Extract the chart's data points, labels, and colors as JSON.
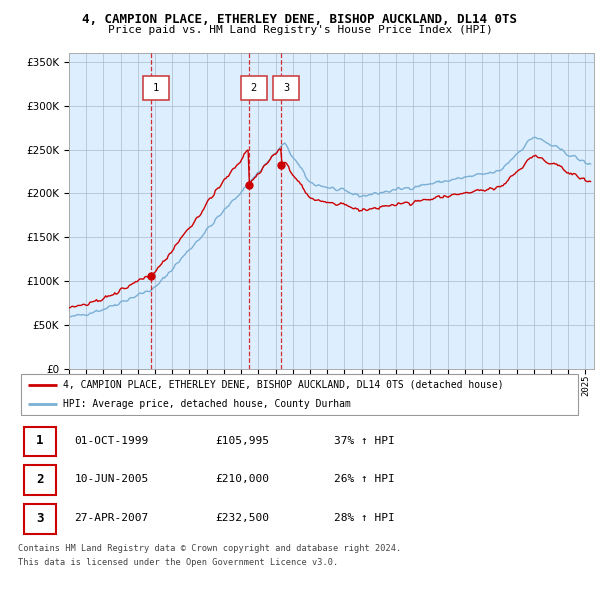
{
  "title": "4, CAMPION PLACE, ETHERLEY DENE, BISHOP AUCKLAND, DL14 0TS",
  "subtitle": "Price paid vs. HM Land Registry's House Price Index (HPI)",
  "legend_line1": "4, CAMPION PLACE, ETHERLEY DENE, BISHOP AUCKLAND, DL14 0TS (detached house)",
  "legend_line2": "HPI: Average price, detached house, County Durham",
  "footer1": "Contains HM Land Registry data © Crown copyright and database right 2024.",
  "footer2": "This data is licensed under the Open Government Licence v3.0.",
  "transactions": [
    {
      "num": 1,
      "date": "01-OCT-1999",
      "price": "£105,995",
      "hpi": "37% ↑ HPI",
      "year": 1999.75,
      "value": 105995
    },
    {
      "num": 2,
      "date": "10-JUN-2005",
      "price": "£210,000",
      "hpi": "26% ↑ HPI",
      "year": 2005.44,
      "value": 210000
    },
    {
      "num": 3,
      "date": "27-APR-2007",
      "price": "£232,500",
      "hpi": "28% ↑ HPI",
      "year": 2007.32,
      "value": 232500
    }
  ],
  "red_line_color": "#cc0000",
  "blue_line_color": "#7bafd4",
  "dashed_color": "#cc0000",
  "chart_bg": "#ddeeff",
  "background_color": "#ffffff",
  "grid_color": "#aabbcc",
  "ylim": [
    0,
    360000
  ],
  "yticks": [
    0,
    50000,
    100000,
    150000,
    200000,
    250000,
    300000,
    350000
  ],
  "xlim_start": 1995.0,
  "xlim_end": 2025.5,
  "xtick_years": [
    1995,
    1996,
    1997,
    1998,
    1999,
    2000,
    2001,
    2002,
    2003,
    2004,
    2005,
    2006,
    2007,
    2008,
    2009,
    2010,
    2011,
    2012,
    2013,
    2014,
    2015,
    2016,
    2017,
    2018,
    2019,
    2020,
    2021,
    2022,
    2023,
    2024,
    2025
  ]
}
